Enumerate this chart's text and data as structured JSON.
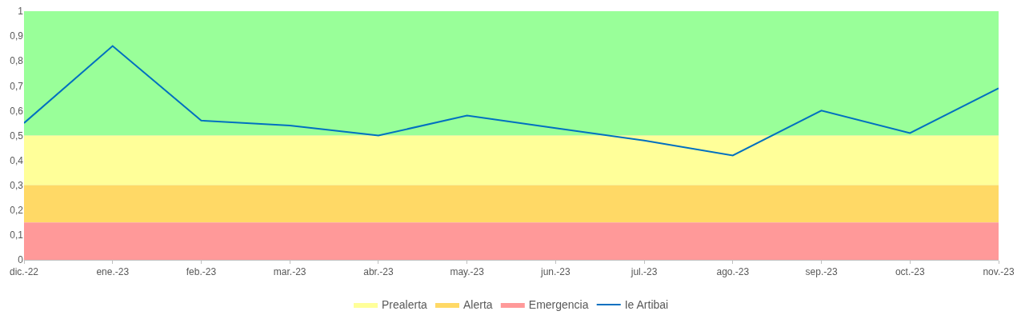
{
  "chart_data": {
    "type": "line",
    "categories": [
      "dic.-22",
      "ene.-23",
      "feb.-23",
      "mar.-23",
      "abr.-23",
      "may.-23",
      "jun.-23",
      "jul.-23",
      "ago.-23",
      "sep.-23",
      "oct.-23",
      "nov.-23"
    ],
    "series": [
      {
        "name": "Ie Artibai",
        "color": "#0070c0",
        "values": [
          0.55,
          0.86,
          0.56,
          0.54,
          0.5,
          0.58,
          0.53,
          0.48,
          0.42,
          0.6,
          0.51,
          0.69
        ]
      }
    ],
    "bands": [
      {
        "axis": "y",
        "from": 0.5,
        "to": 1,
        "color": "#99ff99"
      },
      {
        "axis": "y",
        "from": 0.3,
        "to": 0.5,
        "label": "Prealerta",
        "color": "#ffff99"
      },
      {
        "axis": "y",
        "from": 0.15,
        "to": 0.3,
        "label": "Alerta",
        "color": "#ffd966"
      },
      {
        "axis": "y",
        "from": 0,
        "to": 0.15,
        "label": "Emergencia",
        "color": "#ff9999"
      }
    ],
    "ylim": [
      0,
      1
    ],
    "yticks": [
      0,
      {
        "value": 0.1,
        "label": "0,1"
      },
      {
        "value": 0.2,
        "label": "0,2"
      },
      {
        "value": 0.3,
        "label": "0,3"
      },
      {
        "value": 0.4,
        "label": "0,4"
      },
      {
        "value": 0.5,
        "label": "0,5"
      },
      {
        "value": 0.6,
        "label": "0,6"
      },
      {
        "value": 0.7,
        "label": "0,7"
      },
      {
        "value": 0.8,
        "label": "0,8"
      },
      {
        "value": 0.9,
        "label": "0,9"
      },
      1
    ],
    "grid": "y",
    "legend": "bottom",
    "marker": "none",
    "line_style": "solid"
  }
}
